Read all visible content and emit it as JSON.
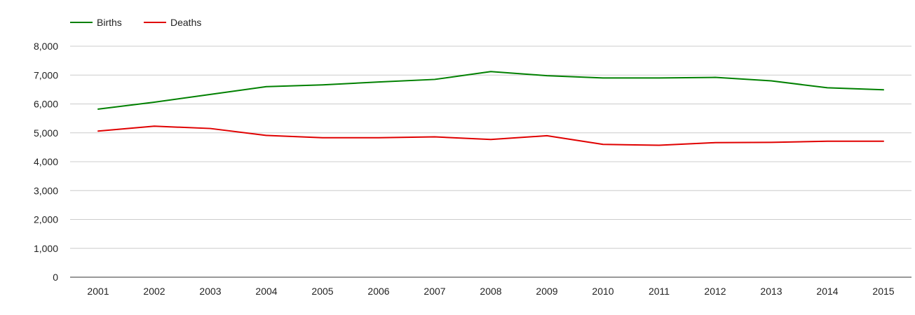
{
  "chart_data": {
    "type": "line",
    "title": "",
    "xlabel": "",
    "ylabel": "",
    "categories": [
      "2001",
      "2002",
      "2003",
      "2004",
      "2005",
      "2006",
      "2007",
      "2008",
      "2009",
      "2010",
      "2011",
      "2012",
      "2013",
      "2014",
      "2015"
    ],
    "series": [
      {
        "name": "Births",
        "color": "#008000",
        "values": [
          5820,
          6060,
          6330,
          6600,
          6660,
          6760,
          6850,
          7120,
          6980,
          6900,
          6900,
          6920,
          6800,
          6560,
          6490
        ]
      },
      {
        "name": "Deaths",
        "color": "#e00000",
        "values": [
          5060,
          5230,
          5150,
          4910,
          4830,
          4830,
          4860,
          4770,
          4900,
          4600,
          4570,
          4660,
          4670,
          4710,
          4710
        ]
      }
    ],
    "ylim": [
      0,
      8000
    ],
    "yticks": [
      0,
      1000,
      2000,
      3000,
      4000,
      5000,
      6000,
      7000,
      8000
    ],
    "yticklabels": [
      "0",
      "1,000",
      "2,000",
      "3,000",
      "4,000",
      "5,000",
      "6,000",
      "7,000",
      "8,000"
    ],
    "grid": true,
    "legend_position": "top-left"
  }
}
